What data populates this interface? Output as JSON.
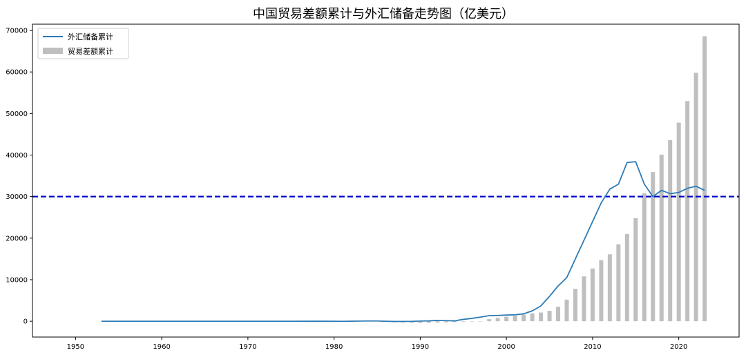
{
  "chart_data": {
    "type": "bar",
    "title": "中国贸易差额累计与外汇储备走势图（亿美元）",
    "xlabel": "",
    "ylabel": "",
    "xlim": [
      1945,
      2027
    ],
    "ylim": [
      -3800,
      71500
    ],
    "x_ticks": [
      "1950",
      "1960",
      "1970",
      "1980",
      "1990",
      "2000",
      "2010",
      "2020"
    ],
    "y_ticks": [
      "0",
      "10000",
      "20000",
      "30000",
      "40000",
      "50000",
      "60000",
      "70000"
    ],
    "reference_line": {
      "y": 30000,
      "color": "#0000cc",
      "style": "dashed"
    },
    "legend_position": "top-left",
    "grid": false,
    "series": [
      {
        "name": "外汇储备累计",
        "type": "line",
        "color": "#2c7bb6",
        "x": [
          1953,
          1955,
          1960,
          1965,
          1970,
          1975,
          1978,
          1980,
          1981,
          1982,
          1983,
          1984,
          1985,
          1986,
          1987,
          1988,
          1989,
          1990,
          1991,
          1992,
          1993,
          1994,
          1995,
          1996,
          1997,
          1998,
          1999,
          2000,
          2001,
          2002,
          2003,
          2004,
          2005,
          2006,
          2007,
          2008,
          2009,
          2010,
          2011,
          2012,
          2013,
          2014,
          2015,
          2016,
          2017,
          2018,
          2019,
          2020,
          2021,
          2022,
          2023
        ],
        "values": [
          0,
          0,
          0,
          0,
          0,
          0,
          15,
          -10,
          -20,
          10,
          50,
          70,
          60,
          -10,
          -50,
          -40,
          -20,
          50,
          100,
          200,
          150,
          100,
          450,
          700,
          1000,
          1350,
          1400,
          1500,
          1550,
          1800,
          2500,
          3700,
          6000,
          8500,
          10500,
          15000,
          19500,
          24000,
          28500,
          31800,
          33000,
          38200,
          38400,
          33000,
          30000,
          31500,
          30700,
          31000,
          32000,
          32500,
          31500
        ]
      },
      {
        "name": "贸易差额累计",
        "type": "bar",
        "color": "#bfbfbf",
        "x": [
          1986,
          1987,
          1988,
          1989,
          1990,
          1991,
          1992,
          1993,
          1994,
          1995,
          1996,
          1997,
          1998,
          1999,
          2000,
          2001,
          2002,
          2003,
          2004,
          2005,
          2006,
          2007,
          2008,
          2009,
          2010,
          2011,
          2012,
          2013,
          2014,
          2015,
          2016,
          2017,
          2018,
          2019,
          2020,
          2021,
          2022,
          2023
        ],
        "values": [
          -100,
          -250,
          -300,
          -350,
          -400,
          -350,
          -300,
          -250,
          -200,
          -100,
          -50,
          0,
          500,
          800,
          1100,
          1300,
          1600,
          1900,
          2100,
          2500,
          3500,
          5200,
          7800,
          10800,
          12700,
          14700,
          16100,
          18500,
          21000,
          24800,
          30800,
          35900,
          40100,
          43600,
          47800,
          53000,
          59800,
          68600
        ]
      }
    ]
  }
}
